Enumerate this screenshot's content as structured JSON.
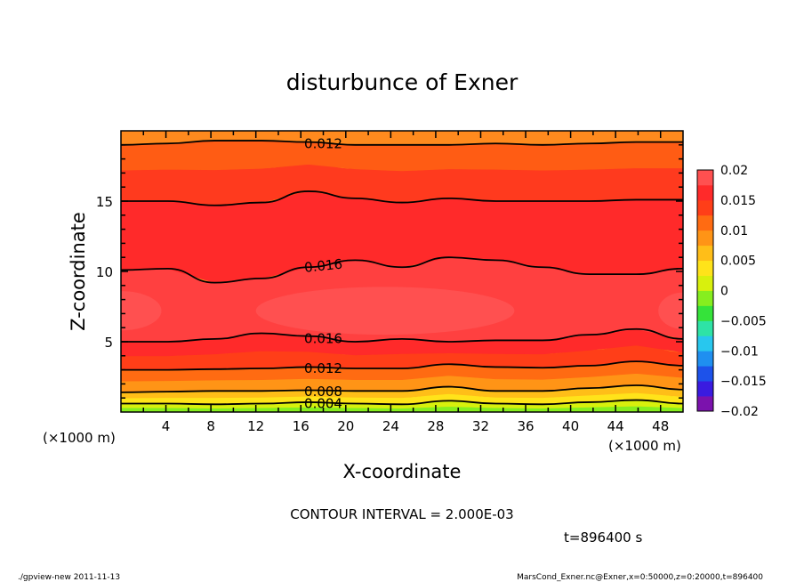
{
  "chart_data": {
    "type": "heatmap",
    "title": "disturbunce of Exner",
    "xlabel": "X-coordinate",
    "ylabel": "Z-coordinate",
    "x_unit": "(×1000 m)",
    "y_unit": "(×1000 m)",
    "xlim": [
      0,
      50
    ],
    "ylim": [
      0,
      20
    ],
    "x_ticks": [
      "4",
      "8",
      "12",
      "16",
      "20",
      "24",
      "28",
      "32",
      "36",
      "40",
      "44",
      "48"
    ],
    "y_ticks": [
      "5",
      "10",
      "15"
    ],
    "contour_interval_text": "CONTOUR INTERVAL = 2.000E-03",
    "time_text": "t=896400 s",
    "footer_left": "./gpview-new   2011-11-13",
    "footer_right": "MarsCond_Exner.nc@Exner,x=0:50000,z=0:20000,t=896400",
    "colorbar": {
      "levels": [
        -0.02,
        -0.015,
        -0.01,
        -0.005,
        0,
        0.005,
        0.01,
        0.015,
        0.02
      ],
      "labels": [
        "0.02",
        "0.015",
        "0.01",
        "0.005",
        "0",
        "−0.005",
        "−0.01",
        "−0.015",
        "−0.02"
      ],
      "colors": [
        "#7b12ad",
        "#3a1be0",
        "#1d52ea",
        "#1f8ff0",
        "#28c7ee",
        "#2ee3a6",
        "#35e33a",
        "#86ee1f",
        "#d8f00d",
        "#ffe31a",
        "#ffbe18",
        "#ff9416",
        "#ff6b12",
        "#ff3e18",
        "#ff2a2a",
        "#ff5050"
      ]
    },
    "contours": [
      {
        "label": "0.004",
        "z": [
          0.6,
          0.6,
          0.55,
          0.6,
          0.7,
          0.6,
          0.55,
          0.8,
          0.6,
          0.55,
          0.7,
          0.85,
          0.6
        ]
      },
      {
        "label": "0.008",
        "z": [
          1.4,
          1.45,
          1.5,
          1.5,
          1.55,
          1.5,
          1.5,
          1.8,
          1.5,
          1.5,
          1.7,
          1.9,
          1.6
        ]
      },
      {
        "label": "0.012",
        "z": [
          3.0,
          3.0,
          3.05,
          3.1,
          3.2,
          3.1,
          3.1,
          3.4,
          3.2,
          3.15,
          3.3,
          3.6,
          3.3
        ]
      },
      {
        "label": "0.016",
        "z": [
          5.0,
          5.0,
          5.2,
          5.6,
          5.4,
          5.0,
          5.2,
          5.0,
          5.1,
          5.1,
          5.5,
          5.9,
          5.2
        ]
      },
      {
        "label": "0.016",
        "z": [
          10.1,
          10.2,
          9.2,
          9.5,
          10.3,
          10.8,
          10.3,
          11.0,
          10.8,
          10.3,
          9.8,
          9.8,
          10.2
        ]
      },
      {
        "label": "",
        "z": [
          15.0,
          15.0,
          14.7,
          14.9,
          15.7,
          15.2,
          14.9,
          15.2,
          15.0,
          15.0,
          15.0,
          15.1,
          15.1
        ]
      },
      {
        "label": "0.012",
        "z": [
          19.0,
          19.1,
          19.3,
          19.3,
          19.2,
          19.0,
          19.0,
          19.0,
          19.1,
          19.0,
          19.1,
          19.2,
          19.2
        ]
      }
    ]
  }
}
